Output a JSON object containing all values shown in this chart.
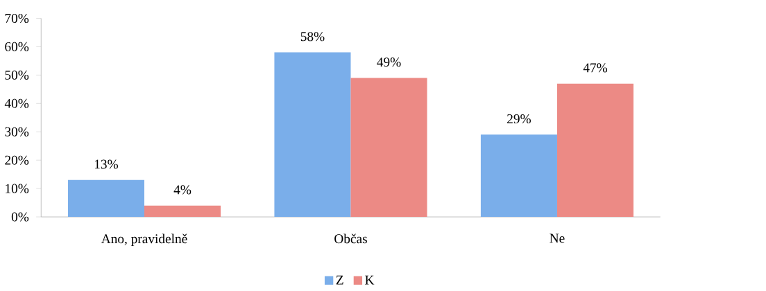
{
  "chart_data": {
    "type": "bar",
    "categories": [
      "Ano, pravidelně",
      "Občas",
      "Ne"
    ],
    "series": [
      {
        "name": "Z",
        "color": "#7aaeea",
        "values": [
          13,
          58,
          29
        ],
        "value_labels": [
          "13%",
          "58%",
          "29%"
        ]
      },
      {
        "name": "K",
        "color": "#ec8a85",
        "values": [
          4,
          49,
          47
        ],
        "value_labels": [
          "4%",
          "49%",
          "47%"
        ]
      }
    ],
    "ylim": [
      0,
      70
    ],
    "yticks": [
      {
        "value": 0,
        "label": "0%"
      },
      {
        "value": 10,
        "label": "10%"
      },
      {
        "value": 20,
        "label": "20%"
      },
      {
        "value": 30,
        "label": "30%"
      },
      {
        "value": 40,
        "label": "40%"
      },
      {
        "value": 50,
        "label": "50%"
      },
      {
        "value": 60,
        "label": "60%"
      },
      {
        "value": 70,
        "label": "70%"
      }
    ],
    "grid": false,
    "legend": "bottom"
  }
}
